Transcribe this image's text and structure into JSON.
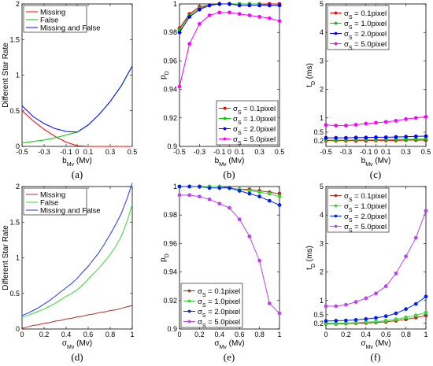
{
  "chart_data": [
    {
      "panel": "(a)",
      "type": "line",
      "xlabel": "b_Mv (Mv)",
      "ylabel": "Different Star Rate",
      "xlim": [
        -0.5,
        0.5
      ],
      "ylim": [
        0,
        2
      ],
      "xticks": [
        "-0.5",
        "-0.3",
        "-0.1",
        "0",
        "0.1",
        "0.3",
        "0.5"
      ],
      "xtick_values": [
        -0.5,
        -0.3,
        -0.1,
        0,
        0.1,
        0.3,
        0.5
      ],
      "yticks": [
        "0",
        "0.5",
        "1",
        "1.5",
        "2"
      ],
      "ytick_values": [
        0,
        0.5,
        1,
        1.5,
        2
      ],
      "legend": "top-left",
      "x": [
        -0.5,
        -0.4,
        -0.3,
        -0.2,
        -0.1,
        0,
        0.1,
        0.2,
        0.3,
        0.4,
        0.5
      ],
      "series": [
        {
          "name": "Missing",
          "color": "#ff0000",
          "markers": false,
          "values": [
            0.5,
            0.36,
            0.24,
            0.14,
            0.06,
            0.01,
            0.0,
            0.0,
            0.0,
            0.0,
            0.0
          ]
        },
        {
          "name": "False",
          "color": "#00cc00",
          "markers": false,
          "values": [
            0.05,
            0.07,
            0.09,
            0.12,
            0.16,
            0.2,
            0.3,
            0.45,
            0.63,
            0.85,
            1.13
          ]
        },
        {
          "name": "Missing and False",
          "color": "#0000ff",
          "markers": false,
          "values": [
            0.57,
            0.42,
            0.32,
            0.25,
            0.21,
            0.2,
            0.3,
            0.45,
            0.63,
            0.85,
            1.13
          ]
        }
      ]
    },
    {
      "panel": "(b)",
      "type": "line",
      "xlabel": "b_Mv (Mv)",
      "ylabel": "p_D",
      "xlim": [
        -0.5,
        0.5
      ],
      "ylim": [
        0.9,
        1.0
      ],
      "xticks": [
        "-0.5",
        "-0.3",
        "-0.1",
        "0",
        "0.1",
        "0.3",
        "0.5"
      ],
      "xtick_values": [
        -0.5,
        -0.3,
        -0.1,
        0,
        0.1,
        0.3,
        0.5
      ],
      "yticks": [
        "0.9",
        "0.92",
        "0.94",
        "0.96",
        "0.98",
        "1"
      ],
      "ytick_values": [
        0.9,
        0.92,
        0.94,
        0.96,
        0.98,
        1.0
      ],
      "legend": "bottom-right",
      "x": [
        -0.5,
        -0.4,
        -0.3,
        -0.2,
        -0.1,
        0,
        0.1,
        0.2,
        0.3,
        0.4,
        0.5
      ],
      "series": [
        {
          "name": "σ_S = 0.1pixel",
          "color": "#ff0000",
          "markers": true,
          "values": [
            0.983,
            0.993,
            0.998,
            0.999,
            1.0,
            1.0,
            1.0,
            1.0,
            1.0,
            1.0,
            1.0
          ]
        },
        {
          "name": "σ_S = 1.0pixel",
          "color": "#00cc00",
          "markers": true,
          "values": [
            0.982,
            0.992,
            0.997,
            0.999,
            1.0,
            1.0,
            1.0,
            1.0,
            1.0,
            0.999,
            0.999
          ]
        },
        {
          "name": "σ_S = 2.0pixel",
          "color": "#0000ff",
          "markers": true,
          "values": [
            0.98,
            0.991,
            0.996,
            0.999,
            1.0,
            1.0,
            0.999,
            0.999,
            0.999,
            0.999,
            0.999
          ]
        },
        {
          "name": "σ_S = 5.0pixel",
          "color": "#ff00ff",
          "markers": true,
          "values": [
            0.942,
            0.972,
            0.986,
            0.992,
            0.994,
            0.994,
            0.993,
            0.992,
            0.991,
            0.99,
            0.988
          ]
        }
      ]
    },
    {
      "panel": "(c)",
      "type": "line",
      "xlabel": "b_Mv (Mv)",
      "ylabel": "t_D (ms)",
      "xlim": [
        -0.5,
        0.5
      ],
      "ylim": [
        0,
        5
      ],
      "xticks": [
        "-0.5",
        "-0.3",
        "-0.1",
        "0",
        "0.1",
        "0.3",
        "0.5"
      ],
      "xtick_values": [
        -0.5,
        -0.3,
        -0.1,
        0,
        0.1,
        0.3,
        0.5
      ],
      "yticks": [
        "0.2",
        "0.5",
        "1",
        "2",
        "3",
        "4",
        "5"
      ],
      "ytick_values": [
        0.2,
        0.5,
        1,
        2,
        3,
        4,
        5
      ],
      "legend": "top-left",
      "x": [
        -0.5,
        -0.4,
        -0.3,
        -0.2,
        -0.1,
        0,
        0.1,
        0.2,
        0.3,
        0.4,
        0.5
      ],
      "series": [
        {
          "name": "σ_S = 0.1pixel",
          "color": "#ff0000",
          "markers": true,
          "values": [
            0.2,
            0.2,
            0.2,
            0.2,
            0.2,
            0.21,
            0.21,
            0.21,
            0.22,
            0.22,
            0.22
          ]
        },
        {
          "name": "σ_S = 1.0pixel",
          "color": "#00cc00",
          "markers": true,
          "values": [
            0.22,
            0.22,
            0.22,
            0.23,
            0.23,
            0.23,
            0.24,
            0.24,
            0.25,
            0.25,
            0.26
          ]
        },
        {
          "name": "σ_S = 2.0pixel",
          "color": "#0000ff",
          "markers": true,
          "values": [
            0.3,
            0.3,
            0.3,
            0.31,
            0.31,
            0.32,
            0.32,
            0.33,
            0.34,
            0.35,
            0.36
          ]
        },
        {
          "name": "σ_S = 5.0pixel",
          "color": "#ff00ff",
          "markers": true,
          "values": [
            0.75,
            0.73,
            0.73,
            0.76,
            0.8,
            0.83,
            0.86,
            0.9,
            0.96,
            1.0,
            1.04
          ]
        }
      ]
    },
    {
      "panel": "(d)",
      "type": "line",
      "xlabel": "σ_Mv (Mv)",
      "ylabel": "Different Star Rate",
      "xlim": [
        0,
        1
      ],
      "ylim": [
        0,
        2
      ],
      "xticks": [
        "0",
        "0.2",
        "0.4",
        "0.6",
        "0.8",
        "1"
      ],
      "xtick_values": [
        0,
        0.2,
        0.4,
        0.6,
        0.8,
        1
      ],
      "yticks": [
        "0",
        "0.5",
        "1",
        "1.5",
        "2"
      ],
      "ytick_values": [
        0,
        0.5,
        1,
        1.5,
        2
      ],
      "legend": "top-left",
      "x": [
        0,
        0.05,
        0.1,
        0.15,
        0.2,
        0.25,
        0.3,
        0.35,
        0.4,
        0.45,
        0.5,
        0.55,
        0.6,
        0.65,
        0.7,
        0.75,
        0.8,
        0.85,
        0.9,
        0.95,
        1.0
      ],
      "series": [
        {
          "name": "Missing",
          "color": "#aa3322",
          "markers": false,
          "values": [
            0.01,
            0.03,
            0.05,
            0.06,
            0.08,
            0.09,
            0.11,
            0.12,
            0.14,
            0.15,
            0.17,
            0.18,
            0.2,
            0.21,
            0.23,
            0.24,
            0.26,
            0.27,
            0.29,
            0.31,
            0.33
          ]
        },
        {
          "name": "False",
          "color": "#33dd33",
          "markers": false,
          "values": [
            0.17,
            0.19,
            0.22,
            0.25,
            0.28,
            0.32,
            0.36,
            0.41,
            0.46,
            0.5,
            0.55,
            0.62,
            0.7,
            0.78,
            0.86,
            0.95,
            1.05,
            1.16,
            1.3,
            1.5,
            1.75
          ]
        },
        {
          "name": "Missing and False",
          "color": "#2233ff",
          "markers": false,
          "values": [
            0.19,
            0.22,
            0.26,
            0.3,
            0.35,
            0.4,
            0.46,
            0.52,
            0.58,
            0.64,
            0.71,
            0.8,
            0.88,
            0.98,
            1.08,
            1.2,
            1.33,
            1.47,
            1.62,
            1.82,
            2.05
          ]
        }
      ]
    },
    {
      "panel": "(e)",
      "type": "line",
      "xlabel": "σ_Mv (Mv)",
      "ylabel": "p_D",
      "xlim": [
        0,
        1
      ],
      "ylim": [
        0.9,
        1.0
      ],
      "xticks": [
        "0",
        "0.2",
        "0.4",
        "0.6",
        "0.8",
        "1"
      ],
      "xtick_values": [
        0,
        0.2,
        0.4,
        0.6,
        0.8,
        1
      ],
      "yticks": [
        "0.9",
        "0.92",
        "0.94",
        "0.96",
        "0.98",
        "1"
      ],
      "ytick_values": [
        0.9,
        0.92,
        0.94,
        0.96,
        0.98,
        1.0
      ],
      "legend": "bottom-left",
      "x": [
        0,
        0.1,
        0.2,
        0.3,
        0.4,
        0.5,
        0.6,
        0.7,
        0.8,
        0.9,
        1.0
      ],
      "series": [
        {
          "name": "σ_S = 0.1pixel",
          "color": "#aa3322",
          "markers": true,
          "values": [
            1.0,
            1.0,
            1.0,
            1.0,
            1.0,
            0.999,
            0.998,
            0.998,
            0.997,
            0.996,
            0.995
          ]
        },
        {
          "name": "σ_S = 1.0pixel",
          "color": "#33dd33",
          "markers": true,
          "values": [
            1.0,
            1.0,
            1.0,
            1.0,
            1.0,
            0.999,
            0.998,
            0.997,
            0.996,
            0.995,
            0.993
          ]
        },
        {
          "name": "σ_S = 2.0pixel",
          "color": "#0022ee",
          "markers": true,
          "values": [
            1.0,
            1.0,
            1.0,
            0.999,
            0.999,
            0.999,
            0.997,
            0.995,
            0.993,
            0.99,
            0.987
          ]
        },
        {
          "name": "σ_S = 5.0pixel",
          "color": "#bb44ee",
          "markers": true,
          "values": [
            0.994,
            0.994,
            0.993,
            0.991,
            0.988,
            0.985,
            0.977,
            0.965,
            0.948,
            0.918,
            0.911
          ]
        }
      ]
    },
    {
      "panel": "(f)",
      "type": "line",
      "xlabel": "σ_Mv (Mv)",
      "ylabel": "t_D (ms)",
      "xlim": [
        0,
        1
      ],
      "ylim": [
        0,
        5
      ],
      "xticks": [
        "0",
        "0.2",
        "0.4",
        "0.6",
        "0.8",
        "1"
      ],
      "xtick_values": [
        0,
        0.2,
        0.4,
        0.6,
        0.8,
        1
      ],
      "yticks": [
        "0.2",
        "0.5",
        "1",
        "2",
        "3",
        "4",
        "5"
      ],
      "ytick_values": [
        0.2,
        0.5,
        1,
        2,
        3,
        4,
        5
      ],
      "legend": "top-left",
      "x": [
        0,
        0.1,
        0.2,
        0.3,
        0.4,
        0.5,
        0.6,
        0.7,
        0.8,
        0.9,
        1.0
      ],
      "series": [
        {
          "name": "σ_S = 0.1pixel",
          "color": "#aa3322",
          "markers": true,
          "values": [
            0.18,
            0.18,
            0.19,
            0.2,
            0.21,
            0.23,
            0.25,
            0.29,
            0.34,
            0.4,
            0.47
          ]
        },
        {
          "name": "σ_S = 1.0pixel",
          "color": "#33dd33",
          "markers": true,
          "values": [
            0.2,
            0.2,
            0.21,
            0.22,
            0.24,
            0.26,
            0.29,
            0.34,
            0.41,
            0.48,
            0.58
          ]
        },
        {
          "name": "σ_S = 2.0pixel",
          "color": "#0022ee",
          "markers": true,
          "values": [
            0.28,
            0.29,
            0.3,
            0.32,
            0.35,
            0.39,
            0.45,
            0.55,
            0.7,
            0.88,
            1.14
          ]
        },
        {
          "name": "σ_S = 5.0pixel",
          "color": "#bb44ee",
          "markers": true,
          "values": [
            0.8,
            0.8,
            0.85,
            0.95,
            1.08,
            1.25,
            1.5,
            1.95,
            2.55,
            3.2,
            4.15
          ]
        }
      ]
    }
  ]
}
